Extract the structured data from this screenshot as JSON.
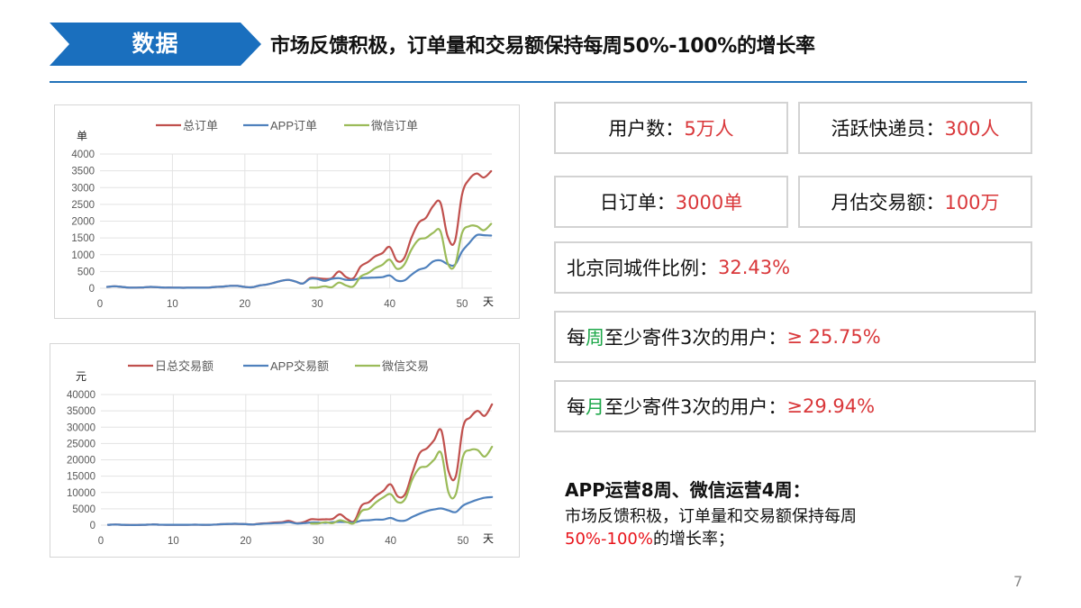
{
  "header": {
    "section_label": "数据",
    "headline": "市场反馈积极，订单量和交易额保持每周50%-100%的增长率",
    "accent_color": "#1a6fbe"
  },
  "stats": {
    "users": {
      "label": "用户数：",
      "value": "5万人"
    },
    "couriers": {
      "label": "活跃快递员：",
      "value": "300人"
    },
    "daily_orders": {
      "label": "日订单：",
      "value": "3000单"
    },
    "monthly_gmv": {
      "label": "月估交易额：",
      "value": "100万"
    },
    "beijing_local": {
      "label": "北京同城件比例：",
      "value": "32.43%"
    },
    "weekly_users": {
      "prefix": "每",
      "highlight": "周",
      "suffix": "至少寄件3次的用户：",
      "value": "≥ 25.75%"
    },
    "monthly_users": {
      "prefix": "每",
      "highlight": "月",
      "suffix": "至少寄件3次的用户：",
      "value": "≥29.94%"
    }
  },
  "summary": {
    "title": "APP运营8周、微信运营4周：",
    "line1": "市场反馈积极，订单量和交易额保持每周",
    "highlight": "50%-100%",
    "line2_suffix": "的增长率；"
  },
  "page_number": "7",
  "chart_data": [
    {
      "type": "line",
      "title": "",
      "xlabel": "天",
      "ylabel": "单",
      "xlim": [
        0,
        54
      ],
      "ylim": [
        0,
        4000
      ],
      "xticks": [
        0,
        10,
        20,
        30,
        40,
        50
      ],
      "yticks": [
        0,
        500,
        1000,
        1500,
        2000,
        2500,
        3000,
        3500,
        4000
      ],
      "grid": true,
      "legend_position": "top",
      "x": [
        1,
        2,
        3,
        4,
        5,
        6,
        7,
        8,
        9,
        10,
        11,
        12,
        13,
        14,
        15,
        16,
        17,
        18,
        19,
        20,
        21,
        22,
        23,
        24,
        25,
        26,
        27,
        28,
        29,
        30,
        31,
        32,
        33,
        34,
        35,
        36,
        37,
        38,
        39,
        40,
        41,
        42,
        43,
        44,
        45,
        46,
        47,
        48,
        49,
        50,
        51,
        52,
        53,
        54
      ],
      "series": [
        {
          "name": "总订单",
          "color": "#c0504d",
          "values": [
            40,
            60,
            40,
            20,
            20,
            25,
            40,
            30,
            20,
            20,
            15,
            15,
            20,
            15,
            20,
            40,
            50,
            70,
            70,
            40,
            30,
            80,
            110,
            160,
            220,
            250,
            200,
            140,
            300,
            300,
            280,
            300,
            500,
            330,
            300,
            650,
            780,
            950,
            1050,
            1230,
            820,
            900,
            1500,
            1950,
            2100,
            2450,
            2550,
            1550,
            1400,
            2800,
            3250,
            3420,
            3300,
            3490
          ]
        },
        {
          "name": "APP订单",
          "color": "#4f81bd",
          "values": [
            40,
            60,
            40,
            20,
            20,
            25,
            40,
            30,
            20,
            20,
            15,
            15,
            20,
            15,
            20,
            40,
            50,
            70,
            70,
            40,
            30,
            80,
            110,
            160,
            220,
            250,
            200,
            140,
            280,
            280,
            220,
            280,
            300,
            250,
            250,
            300,
            310,
            320,
            330,
            380,
            230,
            230,
            400,
            550,
            620,
            800,
            830,
            720,
            700,
            1100,
            1350,
            1580,
            1580,
            1570
          ]
        },
        {
          "name": "微信订单",
          "color": "#9bbb59",
          "values": [
            null,
            null,
            null,
            null,
            null,
            null,
            null,
            null,
            null,
            null,
            null,
            null,
            null,
            null,
            null,
            null,
            null,
            null,
            null,
            null,
            null,
            null,
            null,
            null,
            null,
            null,
            null,
            null,
            20,
            20,
            60,
            30,
            170,
            80,
            60,
            350,
            450,
            600,
            700,
            850,
            580,
            700,
            1150,
            1450,
            1500,
            1650,
            1700,
            750,
            680,
            1650,
            1850,
            1850,
            1730,
            1920
          ]
        }
      ]
    },
    {
      "type": "line",
      "title": "",
      "xlabel": "天",
      "ylabel": "元",
      "xlim": [
        0,
        54
      ],
      "ylim": [
        0,
        40000
      ],
      "xticks": [
        0,
        10,
        20,
        30,
        40,
        50
      ],
      "yticks": [
        0,
        5000,
        10000,
        15000,
        20000,
        25000,
        30000,
        35000,
        40000
      ],
      "grid": true,
      "legend_position": "top",
      "x": [
        1,
        2,
        3,
        4,
        5,
        6,
        7,
        8,
        9,
        10,
        11,
        12,
        13,
        14,
        15,
        16,
        17,
        18,
        19,
        20,
        21,
        22,
        23,
        24,
        25,
        26,
        27,
        28,
        29,
        30,
        31,
        32,
        33,
        34,
        35,
        36,
        37,
        38,
        39,
        40,
        41,
        42,
        43,
        44,
        45,
        46,
        47,
        48,
        49,
        50,
        51,
        52,
        53,
        54
      ],
      "series": [
        {
          "name": "日总交易额",
          "color": "#c0504d",
          "values": [
            100,
            200,
            100,
            50,
            50,
            100,
            200,
            150,
            100,
            100,
            100,
            100,
            150,
            100,
            100,
            200,
            300,
            400,
            400,
            300,
            200,
            500,
            600,
            800,
            900,
            1300,
            600,
            900,
            1800,
            1700,
            1800,
            1900,
            3300,
            1800,
            1300,
            6000,
            7000,
            9000,
            10500,
            12500,
            8800,
            9500,
            16000,
            22000,
            23500,
            26000,
            29000,
            16500,
            15000,
            30000,
            33000,
            35000,
            33500,
            37000
          ]
        },
        {
          "name": "APP交易额",
          "color": "#4f81bd",
          "values": [
            100,
            200,
            100,
            50,
            50,
            100,
            200,
            150,
            100,
            100,
            100,
            100,
            150,
            100,
            100,
            200,
            300,
            400,
            400,
            300,
            200,
            400,
            500,
            600,
            700,
            900,
            500,
            600,
            800,
            800,
            700,
            900,
            1000,
            900,
            800,
            1400,
            1500,
            1700,
            1700,
            2200,
            1400,
            1400,
            2500,
            3500,
            4300,
            4800,
            5100,
            4500,
            4000,
            6000,
            7000,
            7800,
            8400,
            8600
          ]
        },
        {
          "name": "微信交易",
          "color": "#9bbb59",
          "values": [
            null,
            null,
            null,
            null,
            null,
            null,
            null,
            null,
            null,
            null,
            null,
            null,
            null,
            null,
            null,
            null,
            null,
            null,
            null,
            null,
            null,
            null,
            null,
            null,
            null,
            null,
            null,
            null,
            500,
            500,
            900,
            600,
            1500,
            900,
            700,
            4300,
            5000,
            7000,
            8500,
            9500,
            7000,
            8000,
            14000,
            17500,
            18000,
            20000,
            22000,
            10000,
            9500,
            21000,
            23000,
            23000,
            21000,
            24000
          ]
        }
      ]
    }
  ]
}
